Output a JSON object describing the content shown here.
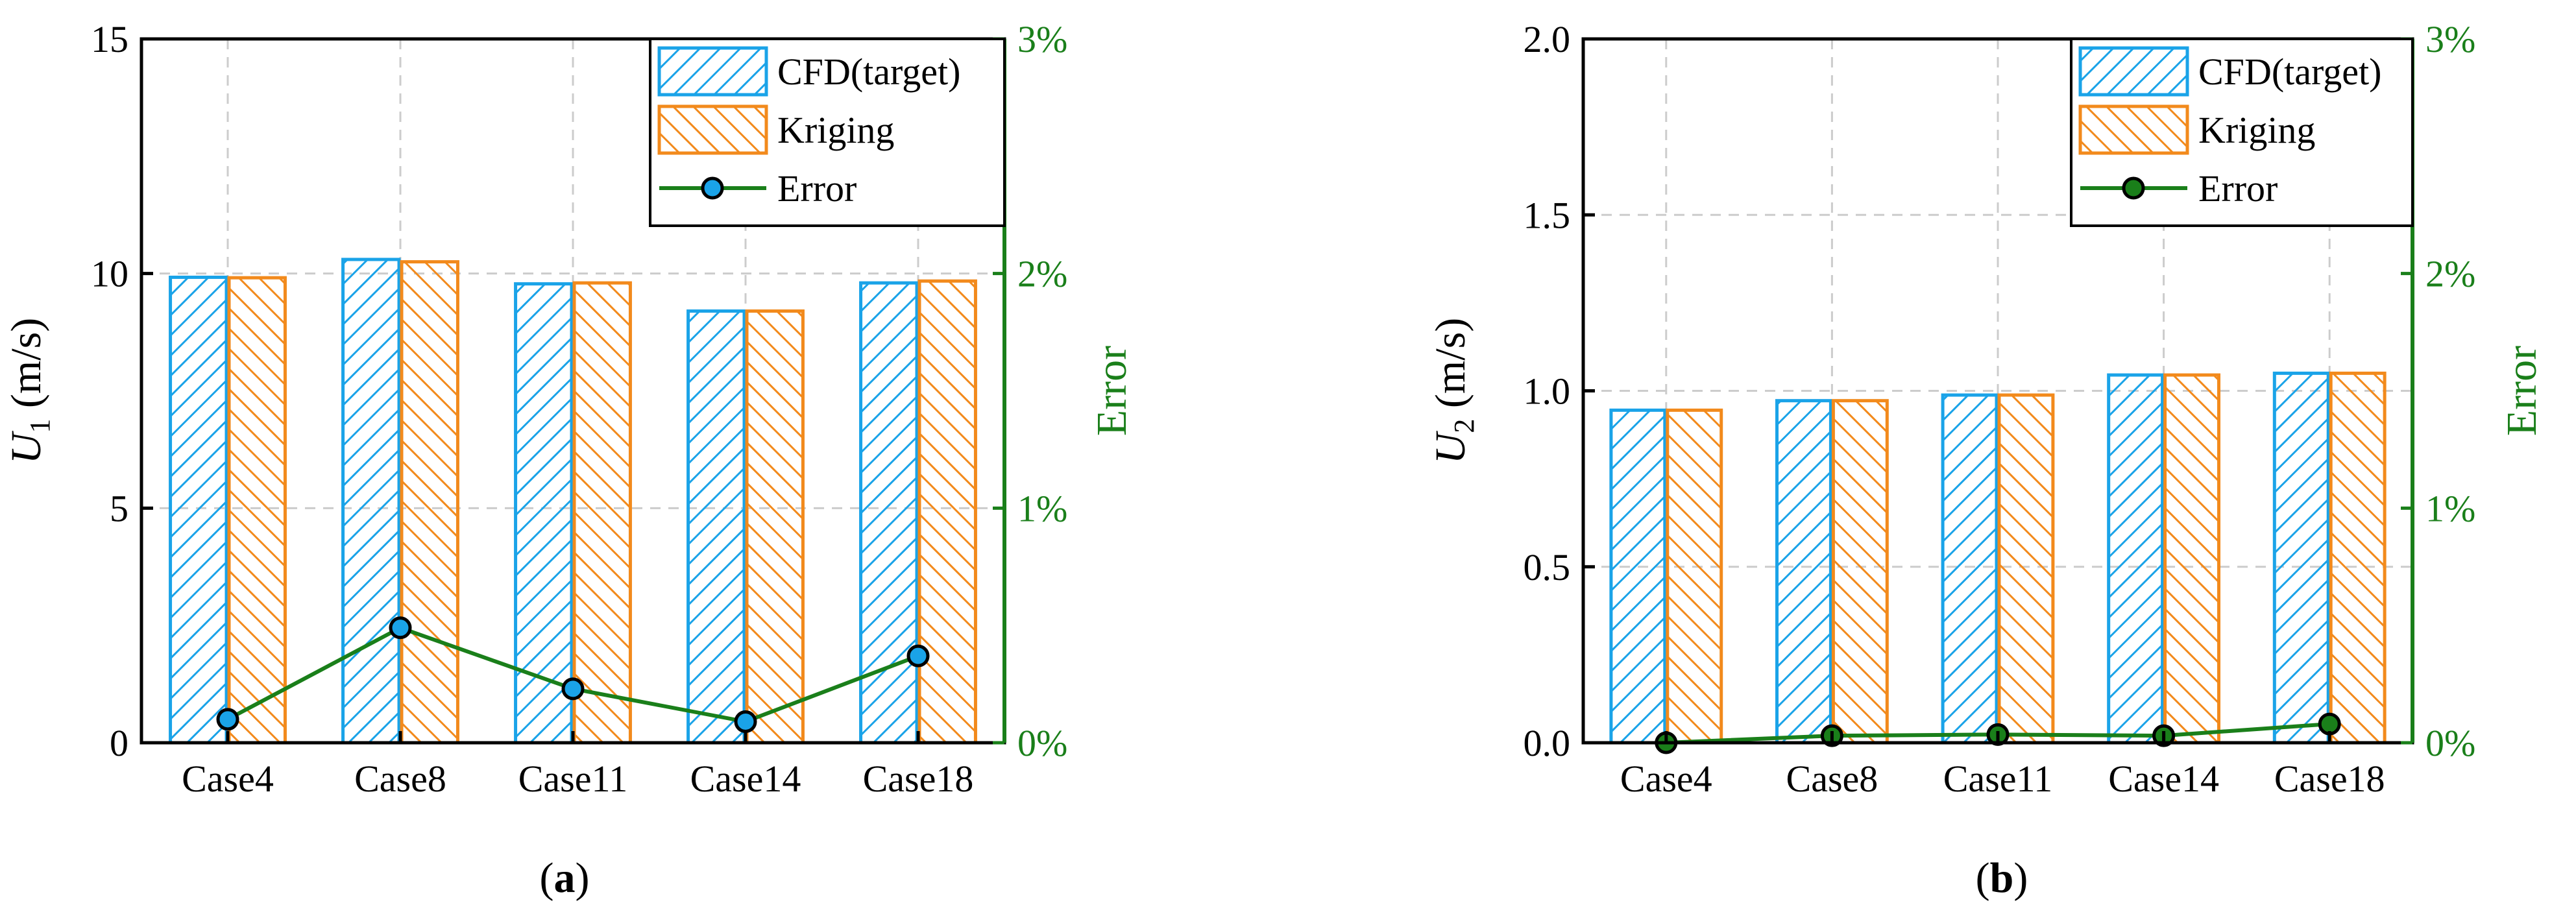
{
  "colors": {
    "cfd": "#1aa3e8",
    "kriging": "#f28a1c",
    "error_line": "#1a7f1a",
    "marker_a": "#1aa3e8",
    "marker_b": "#1a7f1a",
    "grid": "#cccccc"
  },
  "chart_data": [
    {
      "type": "bar",
      "panel_label": "a",
      "categories": [
        "Case4",
        "Case8",
        "Case11",
        "Case14",
        "Case18"
      ],
      "series": [
        {
          "name": "CFD(target)",
          "values": [
            9.92,
            10.3,
            9.78,
            9.2,
            9.8
          ]
        },
        {
          "name": "Kriging",
          "values": [
            9.91,
            10.25,
            9.8,
            9.2,
            9.84
          ]
        }
      ],
      "secondary_series": {
        "name": "Error",
        "type": "line",
        "values": [
          0.1,
          0.49,
          0.23,
          0.09,
          0.37
        ]
      },
      "ylabel_var": "U",
      "ylabel_sub": "1",
      "ylabel_unit": " (m/s)",
      "y2label": "Error",
      "ylim": [
        0,
        15
      ],
      "yticks": [
        "0",
        "5",
        "10",
        "15"
      ],
      "y2lim": [
        0,
        3
      ],
      "y2ticks": [
        "0%",
        "1%",
        "2%",
        "3%"
      ],
      "legend_position": "top-right",
      "grid": true
    },
    {
      "type": "bar",
      "panel_label": "b",
      "categories": [
        "Case4",
        "Case8",
        "Case11",
        "Case14",
        "Case18"
      ],
      "series": [
        {
          "name": "CFD(target)",
          "values": [
            0.945,
            0.972,
            0.988,
            1.045,
            1.05
          ]
        },
        {
          "name": "Kriging",
          "values": [
            0.945,
            0.972,
            0.988,
            1.045,
            1.05
          ]
        }
      ],
      "secondary_series": {
        "name": "Error",
        "type": "line",
        "values": [
          0.0,
          0.03,
          0.035,
          0.03,
          0.08
        ]
      },
      "ylabel_var": "U",
      "ylabel_sub": "2",
      "ylabel_unit": " (m/s)",
      "y2label": "Error",
      "ylim": [
        0,
        2
      ],
      "yticks": [
        "0.0",
        "0.5",
        "1.0",
        "1.5",
        "2.0"
      ],
      "y2lim": [
        0,
        3
      ],
      "y2ticks": [
        "0%",
        "1%",
        "2%",
        "3%"
      ],
      "legend_position": "top-right",
      "grid": true
    }
  ]
}
